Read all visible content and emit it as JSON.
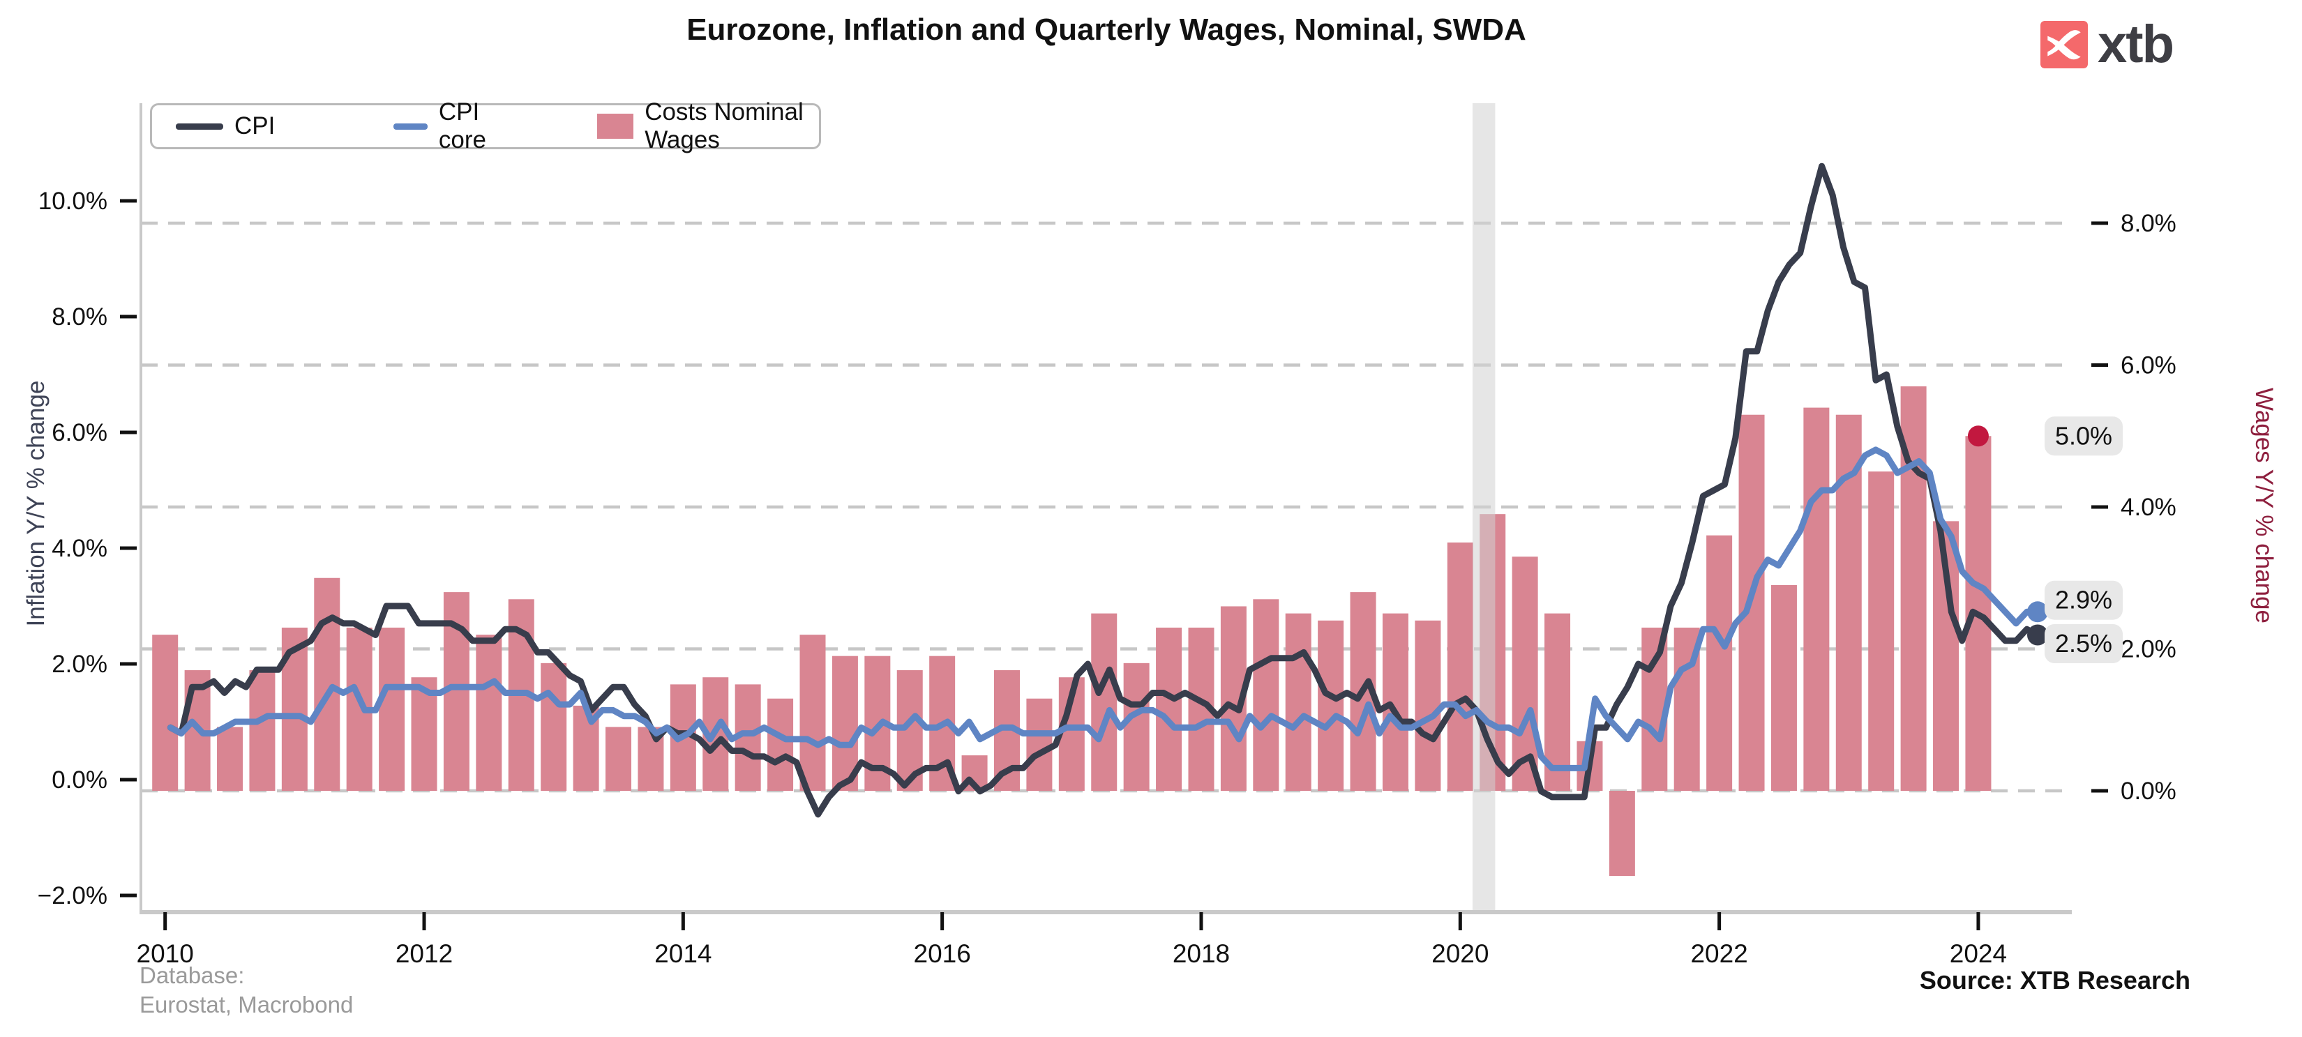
{
  "title": "Eurozone, Inflation and Quarterly Wages, Nominal, SWDA",
  "logo": {
    "text": "xtb",
    "mark_color": "#f4696b",
    "mark_glyph": "x-swoosh",
    "text_color": "#3e3e44"
  },
  "legend": {
    "items": [
      {
        "label": "CPI",
        "type": "line",
        "color": "#383d4c"
      },
      {
        "label": "CPI core",
        "type": "line",
        "color": "#5f85c4"
      },
      {
        "label": "Costs Nominal Wages",
        "type": "bar",
        "color": "#d98592"
      }
    ]
  },
  "footer": {
    "database_line1": "Database:",
    "database_line2": "Eurostat, Macrobond",
    "source": "Source: XTB Research"
  },
  "left_axis": {
    "title": "Inflation Y/Y % change",
    "tick_labels": [
      "10.0%",
      "8.0%",
      "6.0%",
      "4.0%",
      "2.0%",
      "0.0%",
      "−2.0%"
    ],
    "tick_values": [
      10,
      8,
      6,
      4,
      2,
      0,
      -2
    ],
    "title_color": "#3e4356"
  },
  "right_axis": {
    "title": "Wages Y/Y % change",
    "tick_labels": [
      "8.0%",
      "6.0%",
      "4.0%",
      "2.0%",
      "0.0%"
    ],
    "tick_values": [
      8,
      6,
      4,
      2,
      0
    ],
    "title_color": "#8e1f3e"
  },
  "x_axis": {
    "tick_labels": [
      "2010",
      "2012",
      "2014",
      "2016",
      "2018",
      "2020",
      "2022",
      "2024"
    ],
    "tick_years": [
      2010,
      2012,
      2014,
      2016,
      2018,
      2020,
      2022,
      2024
    ]
  },
  "annotations": [
    {
      "text": "5.0%",
      "series": "wages",
      "value": 5.0,
      "year": 2024.0,
      "dot_color": "#c2183f",
      "box_cy_value_axis": "wages",
      "box_cy_value": 5.0
    },
    {
      "text": "2.9%",
      "series": "cpi_core",
      "value": 2.9,
      "year": 2024.458,
      "dot_color": "#5f85c4",
      "box_cy_value_axis": "inflation",
      "box_cy_value": 3.1
    },
    {
      "text": "2.5%",
      "series": "cpi",
      "value": 2.5,
      "year": 2024.458,
      "dot_color": "#383d4c",
      "box_cy_value_axis": "inflation",
      "box_cy_value": 2.35
    }
  ],
  "recession_band": {
    "from_year": 2020.095,
    "to_year": 2020.27,
    "color": "#d2d2d2",
    "opacity": 0.55
  },
  "chart_data": {
    "type": "bar+line, dual axis",
    "grid": "dashed horizontal gridlines on right (wages) axis ticks",
    "left_axis_range": [
      -2.5,
      11.5
    ],
    "right_axis_range": [
      -2.0,
      9.2
    ],
    "bars": {
      "name": "Costs Nominal Wages",
      "axis": "right",
      "unit": "% y/y",
      "categories": [
        "2010Q1",
        "2010Q2",
        "2010Q3",
        "2010Q4",
        "2011Q1",
        "2011Q2",
        "2011Q3",
        "2011Q4",
        "2012Q1",
        "2012Q2",
        "2012Q3",
        "2012Q4",
        "2013Q1",
        "2013Q2",
        "2013Q3",
        "2013Q4",
        "2014Q1",
        "2014Q2",
        "2014Q3",
        "2014Q4",
        "2015Q1",
        "2015Q2",
        "2015Q3",
        "2015Q4",
        "2016Q1",
        "2016Q2",
        "2016Q3",
        "2016Q4",
        "2017Q1",
        "2017Q2",
        "2017Q3",
        "2017Q4",
        "2018Q1",
        "2018Q2",
        "2018Q3",
        "2018Q4",
        "2019Q1",
        "2019Q2",
        "2019Q3",
        "2019Q4",
        "2020Q1",
        "2020Q2",
        "2020Q3",
        "2020Q4",
        "2021Q1",
        "2021Q2",
        "2021Q3",
        "2021Q4",
        "2022Q1",
        "2022Q2",
        "2022Q3",
        "2022Q4",
        "2023Q1",
        "2023Q2",
        "2023Q3",
        "2023Q4",
        "2024Q1"
      ],
      "values": [
        2.2,
        1.7,
        0.9,
        1.7,
        2.3,
        3.0,
        2.3,
        2.3,
        1.6,
        2.8,
        2.2,
        2.7,
        1.8,
        1.2,
        0.9,
        0.9,
        1.5,
        1.6,
        1.5,
        1.3,
        2.2,
        1.9,
        1.9,
        1.7,
        1.9,
        0.5,
        1.7,
        1.3,
        1.6,
        2.5,
        1.8,
        2.3,
        2.3,
        2.6,
        2.7,
        2.5,
        2.4,
        2.8,
        2.5,
        2.4,
        3.5,
        3.9,
        3.3,
        2.5,
        0.7,
        -1.2,
        2.3,
        2.3,
        3.6,
        5.3,
        2.9,
        5.4,
        5.3,
        4.5,
        5.7,
        3.8,
        5.0
      ]
    },
    "lines": [
      {
        "name": "CPI",
        "axis": "left",
        "unit": "% y/y",
        "color": "#383d4c",
        "start": "2010-01",
        "frequency": "monthly",
        "values": [
          0.9,
          0.8,
          1.6,
          1.6,
          1.7,
          1.5,
          1.7,
          1.6,
          1.9,
          1.9,
          1.9,
          2.2,
          2.3,
          2.4,
          2.7,
          2.8,
          2.7,
          2.7,
          2.6,
          2.5,
          3.0,
          3.0,
          3.0,
          2.7,
          2.7,
          2.7,
          2.7,
          2.6,
          2.4,
          2.4,
          2.4,
          2.6,
          2.6,
          2.5,
          2.2,
          2.2,
          2.0,
          1.8,
          1.7,
          1.2,
          1.4,
          1.6,
          1.6,
          1.3,
          1.1,
          0.7,
          0.9,
          0.8,
          0.8,
          0.7,
          0.5,
          0.7,
          0.5,
          0.5,
          0.4,
          0.4,
          0.3,
          0.4,
          0.3,
          -0.2,
          -0.6,
          -0.3,
          -0.1,
          0.0,
          0.3,
          0.2,
          0.2,
          0.1,
          -0.1,
          0.1,
          0.2,
          0.2,
          0.3,
          -0.2,
          0.0,
          -0.2,
          -0.1,
          0.1,
          0.2,
          0.2,
          0.4,
          0.5,
          0.6,
          1.1,
          1.8,
          2.0,
          1.5,
          1.9,
          1.4,
          1.3,
          1.3,
          1.5,
          1.5,
          1.4,
          1.5,
          1.4,
          1.3,
          1.1,
          1.3,
          1.2,
          1.9,
          2.0,
          2.1,
          2.1,
          2.1,
          2.2,
          1.9,
          1.5,
          1.4,
          1.5,
          1.4,
          1.7,
          1.2,
          1.3,
          1.0,
          1.0,
          0.8,
          0.7,
          1.0,
          1.3,
          1.4,
          1.2,
          0.7,
          0.3,
          0.1,
          0.3,
          0.4,
          -0.2,
          -0.3,
          -0.3,
          -0.3,
          -0.3,
          0.9,
          0.9,
          1.3,
          1.6,
          2.0,
          1.9,
          2.2,
          3.0,
          3.4,
          4.1,
          4.9,
          5.0,
          5.1,
          5.9,
          7.4,
          7.4,
          8.1,
          8.6,
          8.9,
          9.1,
          9.9,
          10.6,
          10.1,
          9.2,
          8.6,
          8.5,
          6.9,
          7.0,
          6.1,
          5.5,
          5.3,
          5.2,
          4.3,
          2.9,
          2.4,
          2.9,
          2.8,
          2.6,
          2.4,
          2.4,
          2.6,
          2.5
        ]
      },
      {
        "name": "CPI core",
        "axis": "left",
        "unit": "% y/y",
        "color": "#5f85c4",
        "start": "2010-01",
        "frequency": "monthly",
        "values": [
          0.9,
          0.8,
          1.0,
          0.8,
          0.8,
          0.9,
          1.0,
          1.0,
          1.0,
          1.1,
          1.1,
          1.1,
          1.1,
          1.0,
          1.3,
          1.6,
          1.5,
          1.6,
          1.2,
          1.2,
          1.6,
          1.6,
          1.6,
          1.6,
          1.5,
          1.5,
          1.6,
          1.6,
          1.6,
          1.6,
          1.7,
          1.5,
          1.5,
          1.5,
          1.4,
          1.5,
          1.3,
          1.3,
          1.5,
          1.0,
          1.2,
          1.2,
          1.1,
          1.1,
          1.0,
          0.8,
          0.9,
          0.7,
          0.8,
          1.0,
          0.7,
          1.0,
          0.7,
          0.8,
          0.8,
          0.9,
          0.8,
          0.7,
          0.7,
          0.7,
          0.6,
          0.7,
          0.6,
          0.6,
          0.9,
          0.8,
          1.0,
          0.9,
          0.9,
          1.1,
          0.9,
          0.9,
          1.0,
          0.8,
          1.0,
          0.7,
          0.8,
          0.9,
          0.9,
          0.8,
          0.8,
          0.8,
          0.8,
          0.9,
          0.9,
          0.9,
          0.7,
          1.2,
          0.9,
          1.1,
          1.2,
          1.2,
          1.1,
          0.9,
          0.9,
          0.9,
          1.0,
          1.0,
          1.0,
          0.7,
          1.1,
          0.9,
          1.1,
          1.0,
          0.9,
          1.1,
          1.0,
          0.9,
          1.1,
          1.0,
          0.8,
          1.3,
          0.8,
          1.1,
          0.9,
          0.9,
          1.0,
          1.1,
          1.3,
          1.3,
          1.1,
          1.2,
          1.0,
          0.9,
          0.9,
          0.8,
          1.2,
          0.4,
          0.2,
          0.2,
          0.2,
          0.2,
          1.4,
          1.1,
          0.9,
          0.7,
          1.0,
          0.9,
          0.7,
          1.6,
          1.9,
          2.0,
          2.6,
          2.6,
          2.3,
          2.7,
          2.9,
          3.5,
          3.8,
          3.7,
          4.0,
          4.3,
          4.8,
          5.0,
          5.0,
          5.2,
          5.3,
          5.6,
          5.7,
          5.6,
          5.3,
          5.4,
          5.5,
          5.3,
          4.5,
          4.2,
          3.6,
          3.4,
          3.3,
          3.1,
          2.9,
          2.7,
          2.9,
          2.9
        ]
      }
    ],
    "colors": {
      "bar": "#d98592",
      "cpi": "#383d4c",
      "cpi_core": "#5f85c4",
      "gridline": "#c7c7c7",
      "axis_line": "#c9c9c9",
      "crimson_dot": "#c2183f"
    }
  }
}
